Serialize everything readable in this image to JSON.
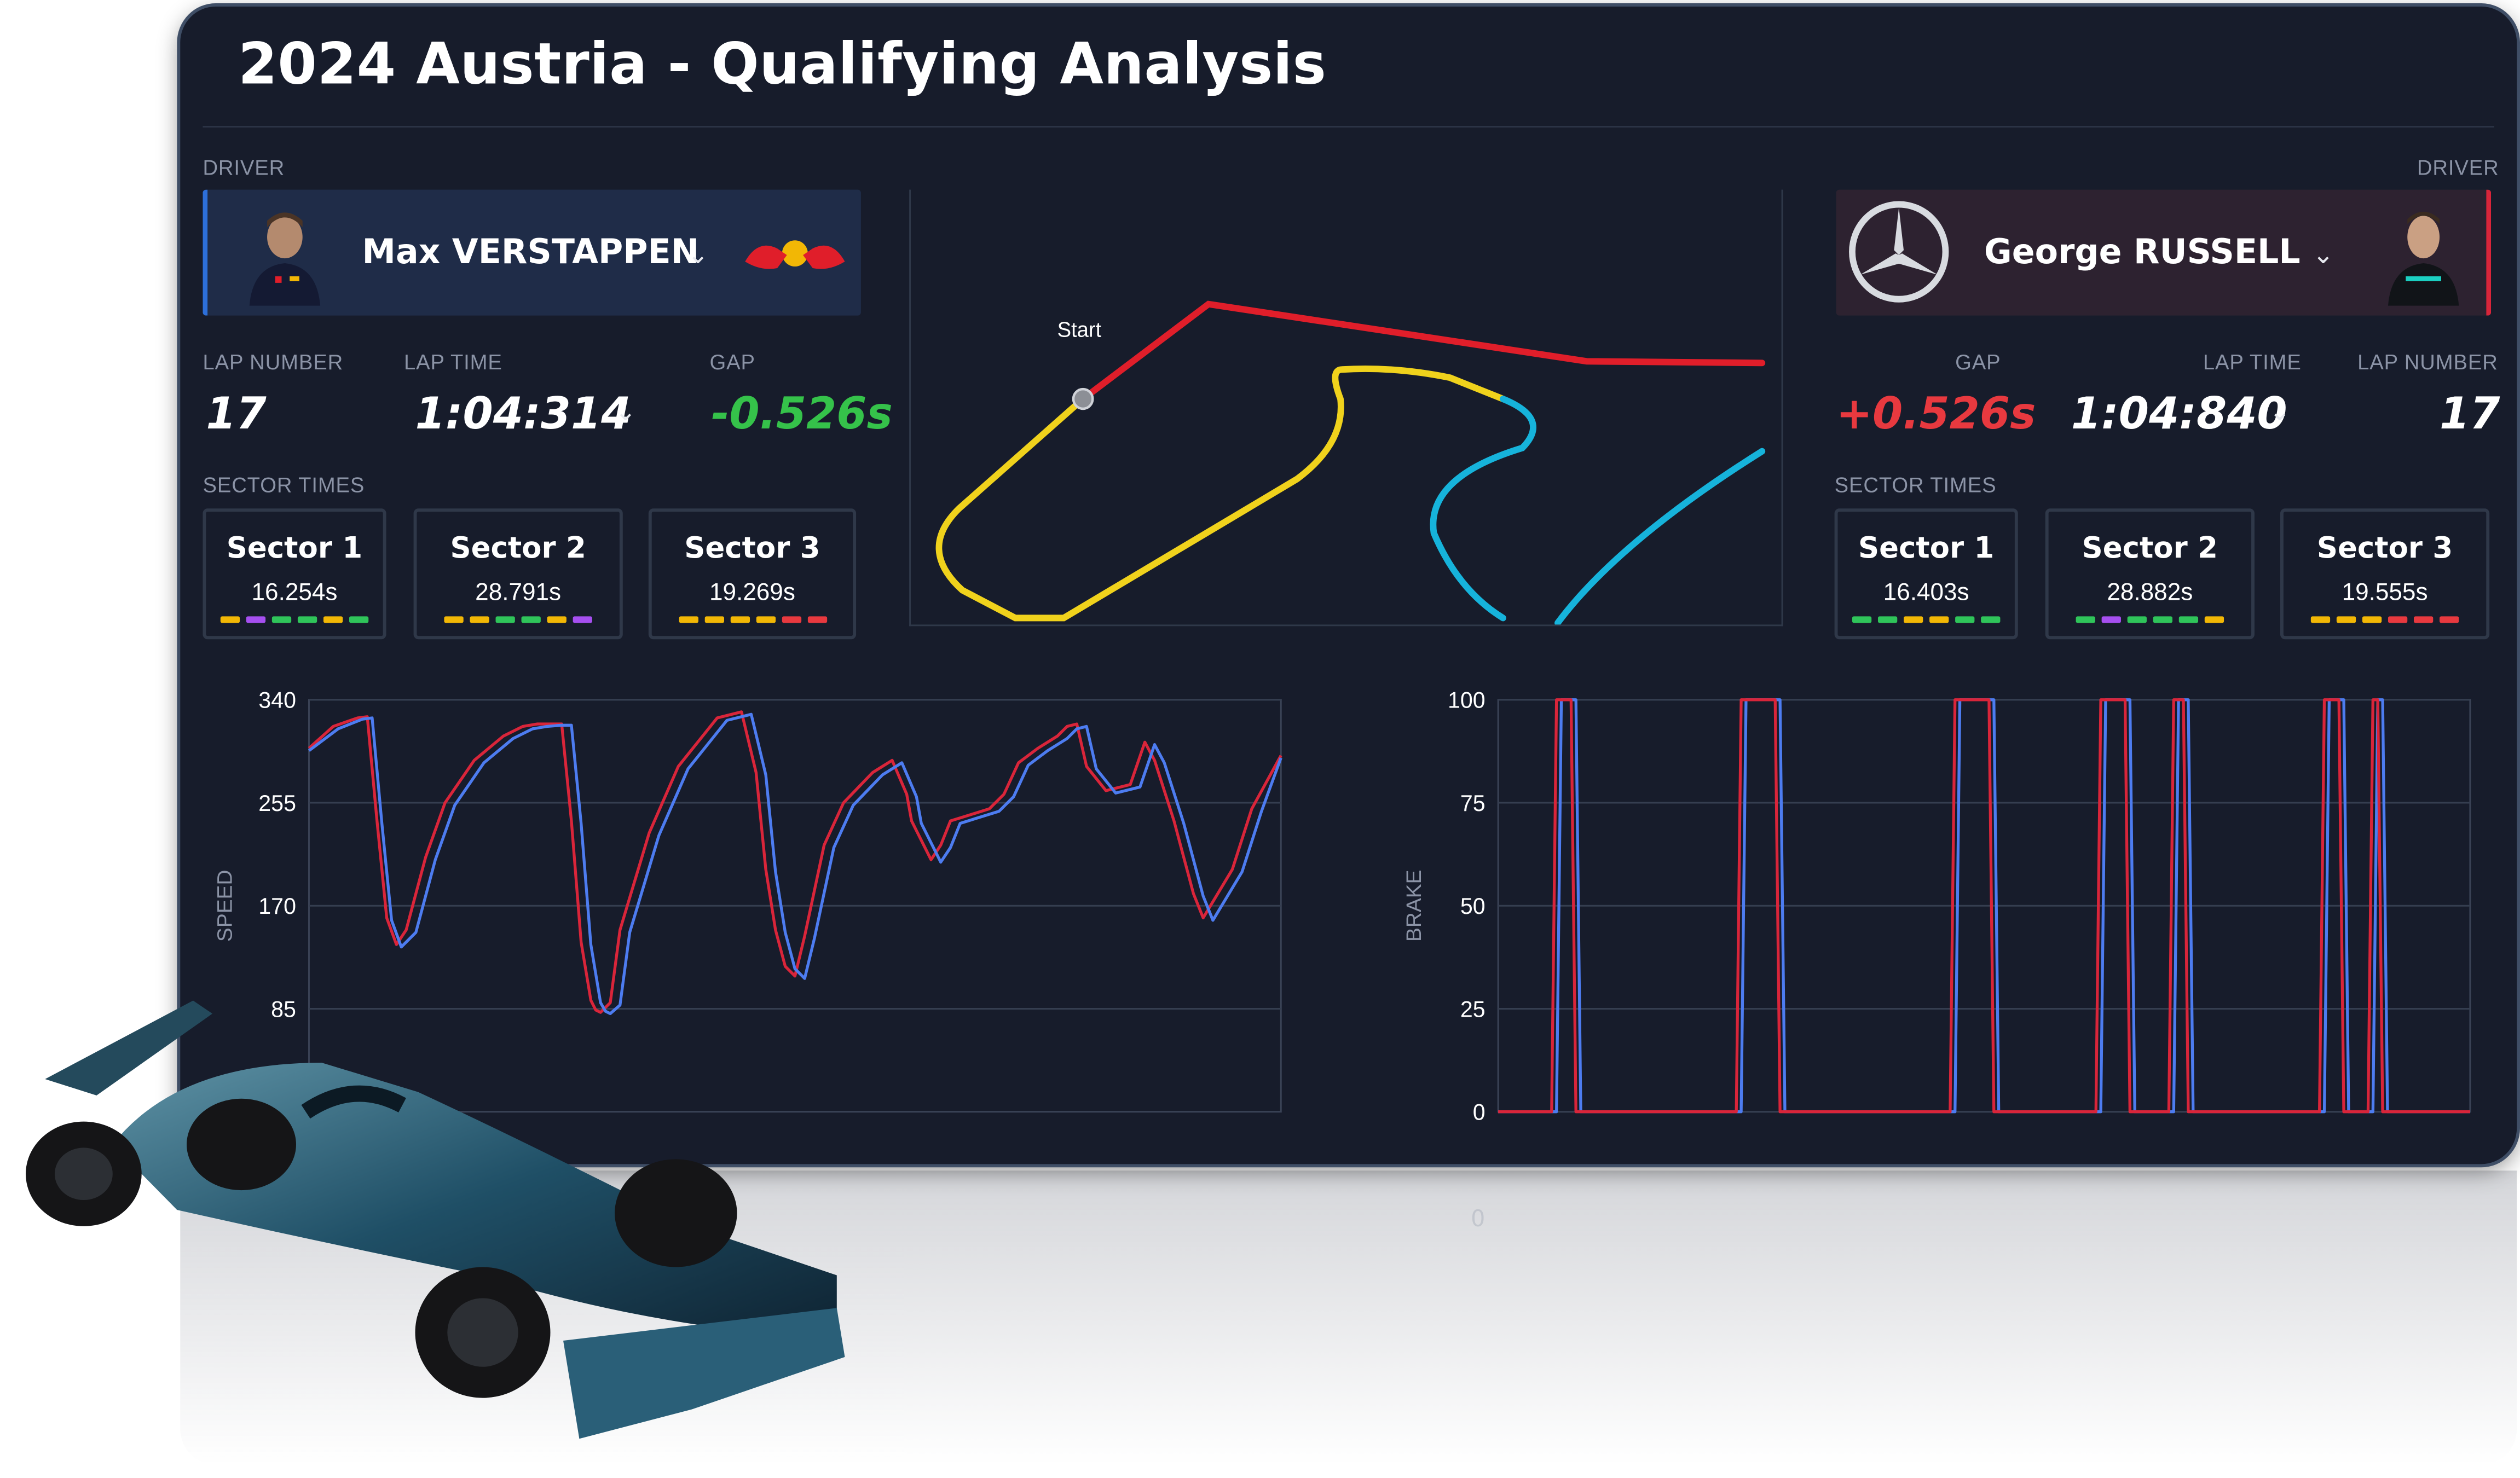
{
  "title": "2024 Austria - Qualifying Analysis",
  "left_driver": {
    "section_label": "DRIVER",
    "name": "Max VERSTAPPEN",
    "team_logo": "red-bull-logo",
    "accent_color": "#2d6fd9",
    "lap_number_label": "LAP NUMBER",
    "lap_number": "17",
    "lap_time_label": "LAP TIME",
    "lap_time": "1:04:314",
    "gap_label": "GAP",
    "gap": "-0.526s",
    "gap_color": "#35c24a",
    "sector_times_label": "SECTOR TIMES",
    "sectors": [
      {
        "name": "Sector 1",
        "time": "16.254s",
        "minisectors": [
          "#f2b705",
          "#a64ff0",
          "#2fc45a",
          "#2fc45a",
          "#f2b705",
          "#2fc45a"
        ]
      },
      {
        "name": "Sector 2",
        "time": "28.791s",
        "minisectors": [
          "#f2b705",
          "#f2b705",
          "#2fc45a",
          "#2fc45a",
          "#f2b705",
          "#a64ff0"
        ]
      },
      {
        "name": "Sector 3",
        "time": "19.269s",
        "minisectors": [
          "#f2b705",
          "#f2b705",
          "#f2b705",
          "#f2b705",
          "#e8393f",
          "#e8393f"
        ]
      }
    ]
  },
  "right_driver": {
    "section_label": "DRIVER",
    "name": "George RUSSELL",
    "team_logo": "mercedes-logo",
    "accent_color": "#d9253a",
    "lap_number_label": "LAP NUMBER",
    "lap_number": "17",
    "lap_time_label": "LAP TIME",
    "lap_time": "1:04:840",
    "gap_label": "GAP",
    "gap": "+0.526s",
    "gap_color": "#e8393f",
    "sector_times_label": "SECTOR TIMES",
    "sectors": [
      {
        "name": "Sector 1",
        "time": "16.403s",
        "minisectors": [
          "#2fc45a",
          "#2fc45a",
          "#f2b705",
          "#f2b705",
          "#2fc45a",
          "#2fc45a"
        ]
      },
      {
        "name": "Sector 2",
        "time": "28.882s",
        "minisectors": [
          "#2fc45a",
          "#a64ff0",
          "#2fc45a",
          "#2fc45a",
          "#2fc45a",
          "#f2b705"
        ]
      },
      {
        "name": "Sector 3",
        "time": "19.555s",
        "minisectors": [
          "#f2b705",
          "#f2b705",
          "#f2b705",
          "#e8393f",
          "#e8393f",
          "#e8393f"
        ]
      }
    ]
  },
  "track_map": {
    "start_label": "Start",
    "sector_colors": [
      "#f0d21c",
      "#e01e2a",
      "#16b3db"
    ]
  },
  "chart_data": [
    {
      "type": "line",
      "ylabel": "SPEED",
      "ylim": [
        0,
        340
      ],
      "yticks": [
        85,
        170,
        255,
        340
      ],
      "xlim": [
        0,
        100
      ],
      "grid": true,
      "series": [
        {
          "color": "#d9253a",
          "x": [
            0,
            2.5,
            5,
            6,
            7,
            8,
            9,
            10,
            12,
            14,
            17,
            20,
            22,
            23.5,
            25,
            26,
            27,
            28,
            29,
            29.5,
            30,
            31,
            32,
            35,
            38,
            42,
            44.5,
            46,
            47,
            48,
            49,
            50,
            51,
            53,
            55,
            58,
            60,
            61.5,
            62,
            63.5,
            64,
            65,
            66,
            68,
            70,
            71.5,
            73,
            75,
            77,
            78,
            79,
            80,
            82,
            84.5,
            86,
            87,
            89,
            91,
            92,
            95,
            97,
            100
          ],
          "y": [
            300,
            318,
            325,
            326,
            240,
            160,
            138,
            150,
            210,
            255,
            290,
            310,
            318,
            320,
            320,
            320,
            240,
            140,
            92,
            84,
            82,
            90,
            150,
            230,
            285,
            325,
            330,
            280,
            200,
            150,
            120,
            112,
            145,
            220,
            255,
            280,
            290,
            262,
            240,
            216,
            208,
            220,
            240,
            245,
            250,
            262,
            288,
            300,
            310,
            318,
            320,
            285,
            265,
            270,
            305,
            290,
            240,
            180,
            160,
            200,
            250,
            294
          ]
        },
        {
          "color": "#4d7cf0",
          "x": [
            0,
            3,
            5.5,
            6.5,
            7.5,
            8.5,
            9.5,
            11,
            13,
            15,
            18,
            21,
            23,
            24.5,
            26,
            27,
            28,
            29,
            30,
            30.5,
            31,
            32,
            33,
            36,
            39,
            43,
            45.5,
            47,
            48,
            49,
            50,
            51,
            52,
            54,
            56,
            59,
            61,
            62.5,
            63,
            64.5,
            65,
            66,
            67,
            69,
            71,
            72.5,
            74,
            76,
            78,
            79,
            80,
            81,
            83,
            85.5,
            87,
            88,
            90,
            92,
            93,
            96,
            98,
            100
          ],
          "y": [
            298,
            316,
            324,
            325,
            238,
            158,
            136,
            148,
            208,
            253,
            288,
            308,
            316,
            318,
            319,
            319,
            238,
            138,
            90,
            83,
            81,
            88,
            148,
            228,
            283,
            323,
            328,
            278,
            198,
            148,
            118,
            110,
            143,
            218,
            253,
            278,
            288,
            260,
            238,
            214,
            206,
            218,
            238,
            243,
            248,
            260,
            286,
            298,
            308,
            316,
            318,
            283,
            263,
            268,
            303,
            288,
            238,
            178,
            158,
            198,
            248,
            292
          ]
        }
      ]
    },
    {
      "type": "line",
      "ylabel": "BRAKE",
      "ylim": [
        0,
        100
      ],
      "yticks": [
        0,
        25,
        50,
        75,
        100
      ],
      "xlim": [
        0,
        100
      ],
      "grid": true,
      "series": [
        {
          "color": "#4d7cf0",
          "x": [
            0,
            6,
            6.5,
            8,
            8.5,
            25,
            25.5,
            29,
            29.5,
            47,
            47.5,
            51,
            51.5,
            62,
            62.5,
            65,
            65.5,
            69.5,
            70,
            71,
            71.5,
            85,
            85.5,
            87,
            87.5,
            90,
            90.5,
            91,
            91.5,
            100
          ],
          "y": [
            0,
            0,
            100,
            100,
            0,
            0,
            100,
            100,
            0,
            0,
            100,
            100,
            0,
            0,
            100,
            100,
            0,
            0,
            100,
            100,
            0,
            0,
            100,
            100,
            0,
            0,
            100,
            100,
            0,
            0
          ]
        },
        {
          "color": "#d9253a",
          "x": [
            0,
            5.5,
            6,
            7.5,
            8,
            24.5,
            25,
            28.5,
            29,
            46.5,
            47,
            50.5,
            51,
            61.5,
            62,
            64.5,
            65,
            69,
            69.5,
            70.5,
            71,
            84.5,
            85,
            86.5,
            87,
            89.5,
            90,
            90.5,
            91,
            100
          ],
          "y": [
            0,
            0,
            100,
            100,
            0,
            0,
            100,
            100,
            0,
            0,
            100,
            100,
            0,
            0,
            100,
            100,
            0,
            0,
            100,
            100,
            0,
            0,
            100,
            100,
            0,
            0,
            100,
            100,
            0,
            0
          ]
        }
      ]
    }
  ],
  "car_image": "f1-car-render"
}
